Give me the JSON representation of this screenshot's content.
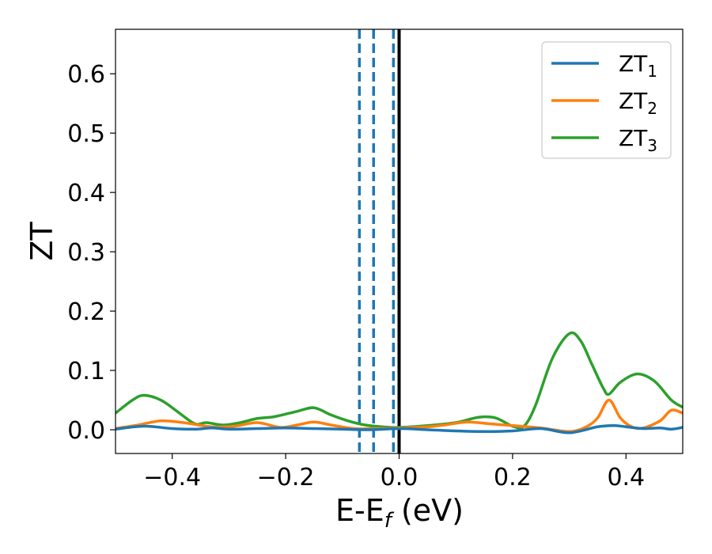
{
  "chart_data": {
    "type": "line",
    "xlabel": "E-E",
    "xlabel_sub": "f",
    "xlabel_unit": " (eV)",
    "ylabel": "ZT",
    "xlim": [
      -0.5,
      0.5
    ],
    "ylim": [
      -0.04,
      0.675
    ],
    "xticks": [
      -0.4,
      -0.2,
      0.0,
      0.2,
      0.4
    ],
    "xtick_labels": [
      "−0.4",
      "−0.2",
      "0.0",
      "0.2",
      "0.4"
    ],
    "yticks": [
      0.0,
      0.1,
      0.2,
      0.3,
      0.4,
      0.5,
      0.6
    ],
    "ytick_labels": [
      "0.0",
      "0.1",
      "0.2",
      "0.3",
      "0.4",
      "0.5",
      "0.6"
    ],
    "grid": false,
    "legend_position": "top-right",
    "vlines": [
      {
        "x": -0.07,
        "style": "dashed",
        "color": "#1f77b4"
      },
      {
        "x": -0.045,
        "style": "dashed",
        "color": "#1f77b4"
      },
      {
        "x": -0.01,
        "style": "dashed",
        "color": "#1f77b4"
      },
      {
        "x": 0.0,
        "style": "solid",
        "color": "#000000"
      }
    ],
    "series": [
      {
        "name": "ZT",
        "name_sub": "1",
        "color": "#1f77b4",
        "x": [
          -0.5,
          -0.45,
          -0.4,
          -0.36,
          -0.33,
          -0.3,
          -0.25,
          -0.2,
          -0.15,
          -0.1,
          -0.05,
          0.0,
          0.05,
          0.1,
          0.15,
          0.2,
          0.25,
          0.3,
          0.35,
          0.38,
          0.4,
          0.43,
          0.46,
          0.48,
          0.5
        ],
        "y": [
          0.001,
          0.006,
          0.002,
          0.001,
          0.003,
          0.001,
          0.002,
          0.003,
          0.002,
          0.001,
          0.0,
          0.002,
          0.0,
          -0.002,
          -0.003,
          -0.002,
          0.002,
          -0.005,
          0.005,
          0.007,
          0.005,
          0.002,
          0.003,
          0.001,
          0.004
        ]
      },
      {
        "name": "ZT",
        "name_sub": "2",
        "color": "#ff7f0e",
        "x": [
          -0.5,
          -0.46,
          -0.42,
          -0.38,
          -0.33,
          -0.29,
          -0.25,
          -0.21,
          -0.18,
          -0.15,
          -0.12,
          -0.08,
          -0.04,
          0.0,
          0.05,
          0.08,
          0.12,
          0.16,
          0.2,
          0.25,
          0.3,
          0.33,
          0.35,
          0.37,
          0.39,
          0.41,
          0.43,
          0.46,
          0.48,
          0.5
        ],
        "y": [
          0.002,
          0.008,
          0.015,
          0.012,
          0.005,
          0.006,
          0.012,
          0.004,
          0.008,
          0.013,
          0.008,
          0.002,
          0.002,
          0.003,
          0.005,
          0.008,
          0.013,
          0.01,
          0.007,
          0.003,
          -0.003,
          0.005,
          0.02,
          0.05,
          0.02,
          0.005,
          0.003,
          0.015,
          0.033,
          0.028
        ]
      },
      {
        "name": "ZT",
        "name_sub": "3",
        "color": "#2ca02c",
        "x": [
          -0.5,
          -0.47,
          -0.45,
          -0.42,
          -0.39,
          -0.36,
          -0.34,
          -0.31,
          -0.28,
          -0.25,
          -0.22,
          -0.18,
          -0.15,
          -0.12,
          -0.09,
          -0.06,
          -0.03,
          0.0,
          0.05,
          0.1,
          0.14,
          0.17,
          0.2,
          0.22,
          0.24,
          0.27,
          0.3,
          0.32,
          0.34,
          0.36,
          0.37,
          0.39,
          0.42,
          0.45,
          0.48,
          0.5
        ],
        "y": [
          0.028,
          0.05,
          0.058,
          0.05,
          0.03,
          0.01,
          0.012,
          0.008,
          0.012,
          0.019,
          0.022,
          0.031,
          0.037,
          0.025,
          0.015,
          0.008,
          0.005,
          0.004,
          0.007,
          0.012,
          0.021,
          0.02,
          0.006,
          0.006,
          0.04,
          0.12,
          0.162,
          0.15,
          0.11,
          0.07,
          0.06,
          0.08,
          0.094,
          0.082,
          0.05,
          0.038
        ]
      }
    ]
  }
}
